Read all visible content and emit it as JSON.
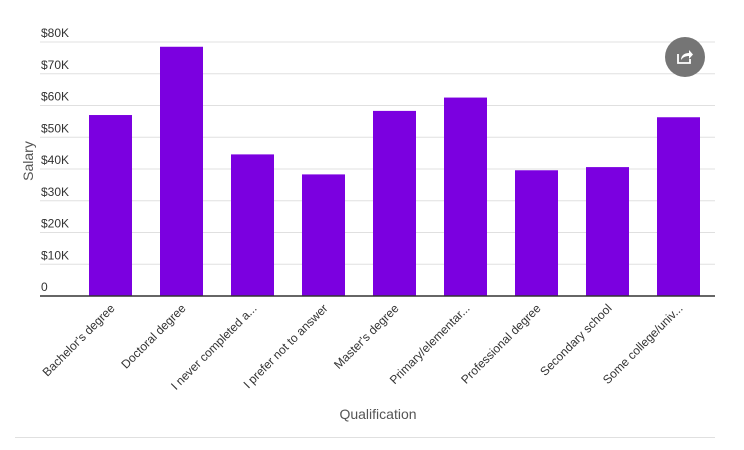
{
  "chart_data": {
    "type": "bar",
    "xlabel": "Qualification",
    "ylabel": "Salary",
    "ylim": [
      0,
      80000
    ],
    "y_ticks": [
      {
        "value": 0,
        "label": "0"
      },
      {
        "value": 10000,
        "label": "$10K"
      },
      {
        "value": 20000,
        "label": "$20K"
      },
      {
        "value": 30000,
        "label": "$30K"
      },
      {
        "value": 40000,
        "label": "$40K"
      },
      {
        "value": 50000,
        "label": "$50K"
      },
      {
        "value": 60000,
        "label": "$60K"
      },
      {
        "value": 70000,
        "label": "$70K"
      },
      {
        "value": 80000,
        "label": "$80K"
      }
    ],
    "categories": [
      "Bachelor's degree",
      "Doctoral degree",
      "I never completed a...",
      "I prefer not to answer",
      "Master's degree",
      "Primary/elementar...",
      "Professional degree",
      "Secondary school",
      "Some college/univ..."
    ],
    "values": [
      57000,
      78500,
      44600,
      38300,
      58300,
      62500,
      39600,
      40600,
      56300
    ],
    "bar_color": "#7b00e0",
    "grid": true
  },
  "share_button": {
    "icon": "share-icon"
  }
}
